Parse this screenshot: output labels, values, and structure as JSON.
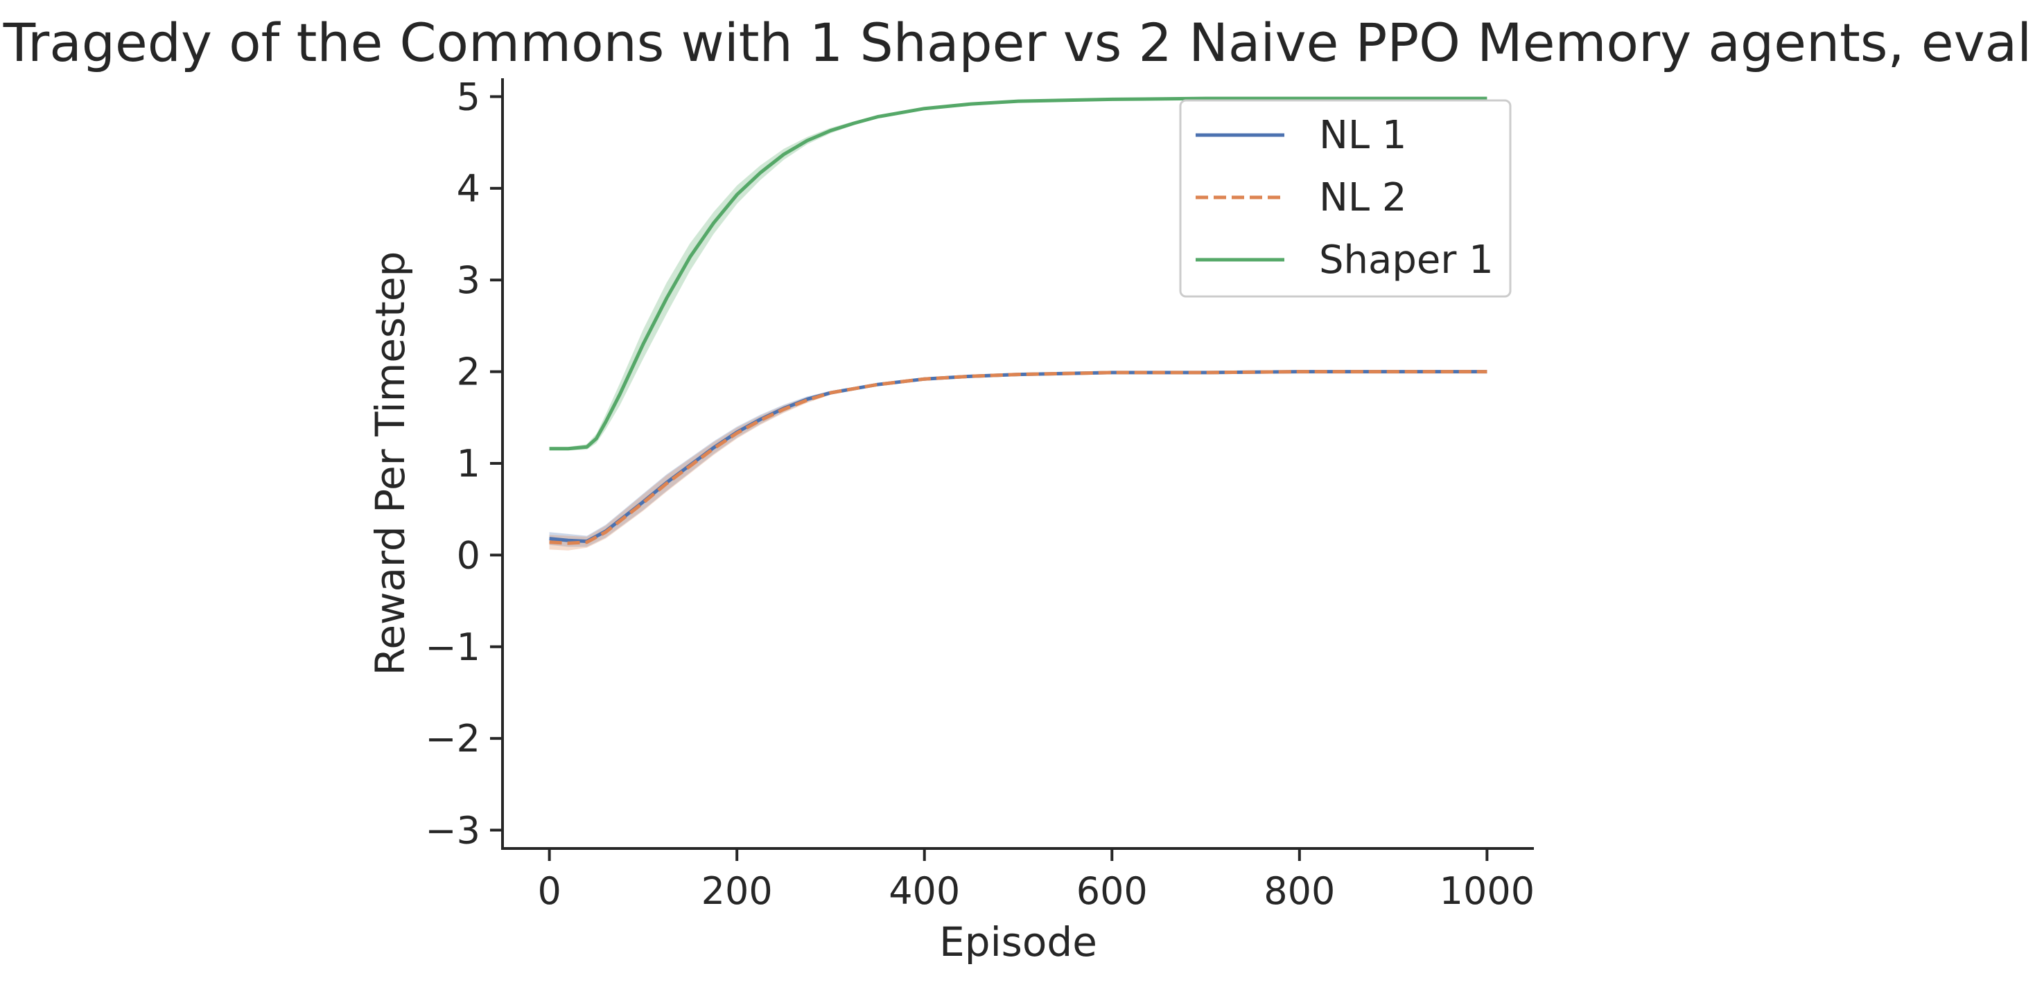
{
  "chart_data": {
    "type": "line",
    "title": "Tragedy of the Commons with 1 Shaper vs 2 Naive PPO Memory agents, eval",
    "xlabel": "Episode",
    "ylabel": "Reward Per Timestep",
    "xlim": [
      -50,
      1050
    ],
    "ylim": [
      -3.2,
      5.2
    ],
    "x_ticks": [
      0,
      200,
      400,
      600,
      800,
      1000
    ],
    "x_tick_labels": [
      "0",
      "200",
      "400",
      "600",
      "800",
      "1000"
    ],
    "y_ticks": [
      -3,
      -2,
      -1,
      0,
      1,
      2,
      3,
      4,
      5
    ],
    "y_tick_labels": [
      "−3",
      "−2",
      "−1",
      "0",
      "1",
      "2",
      "3",
      "4",
      "5"
    ],
    "grid": false,
    "legend_position": "top-right",
    "series": [
      {
        "name": "NL 1",
        "color": "#4c72b0",
        "linestyle": "solid",
        "x": [
          0,
          20,
          40,
          60,
          80,
          100,
          125,
          150,
          175,
          200,
          225,
          250,
          275,
          300,
          350,
          400,
          450,
          500,
          550,
          600,
          700,
          800,
          900,
          1000
        ],
        "y": [
          0.18,
          0.16,
          0.15,
          0.26,
          0.42,
          0.58,
          0.79,
          0.98,
          1.17,
          1.34,
          1.48,
          1.6,
          1.7,
          1.77,
          1.86,
          1.92,
          1.95,
          1.97,
          1.98,
          1.99,
          1.99,
          2.0,
          2.0,
          2.0
        ],
        "band": [
          0.07,
          0.07,
          0.06,
          0.07,
          0.08,
          0.09,
          0.09,
          0.08,
          0.07,
          0.06,
          0.05,
          0.04,
          0.03,
          0.02,
          0.015,
          0.01,
          0.01,
          0.01,
          0.01,
          0.01,
          0.01,
          0.01,
          0.01,
          0.01
        ]
      },
      {
        "name": "NL 2",
        "color": "#dd8452",
        "linestyle": "dashed",
        "x": [
          0,
          20,
          40,
          60,
          80,
          100,
          125,
          150,
          175,
          200,
          225,
          250,
          275,
          300,
          350,
          400,
          450,
          500,
          550,
          600,
          700,
          800,
          900,
          1000
        ],
        "y": [
          0.14,
          0.13,
          0.14,
          0.25,
          0.41,
          0.57,
          0.78,
          0.97,
          1.16,
          1.33,
          1.47,
          1.59,
          1.69,
          1.77,
          1.86,
          1.92,
          1.95,
          1.97,
          1.98,
          1.99,
          1.99,
          2.0,
          2.0,
          2.0
        ],
        "band": [
          0.08,
          0.08,
          0.06,
          0.07,
          0.08,
          0.09,
          0.09,
          0.08,
          0.07,
          0.06,
          0.05,
          0.04,
          0.03,
          0.02,
          0.015,
          0.01,
          0.01,
          0.01,
          0.01,
          0.01,
          0.01,
          0.01,
          0.01,
          0.01
        ]
      },
      {
        "name": "Shaper 1",
        "color": "#55a868",
        "linestyle": "solid",
        "x": [
          0,
          20,
          40,
          50,
          60,
          75,
          100,
          125,
          150,
          175,
          200,
          225,
          250,
          275,
          300,
          325,
          350,
          400,
          450,
          500,
          550,
          600,
          700,
          800,
          900,
          1000
        ],
        "y": [
          1.16,
          1.16,
          1.18,
          1.27,
          1.45,
          1.75,
          2.3,
          2.8,
          3.25,
          3.62,
          3.93,
          4.17,
          4.37,
          4.52,
          4.63,
          4.71,
          4.78,
          4.87,
          4.92,
          4.95,
          4.96,
          4.97,
          4.98,
          4.98,
          4.98,
          4.98
        ],
        "band": [
          0.02,
          0.02,
          0.03,
          0.05,
          0.08,
          0.12,
          0.16,
          0.17,
          0.15,
          0.12,
          0.1,
          0.08,
          0.06,
          0.04,
          0.03,
          0.02,
          0.02,
          0.015,
          0.01,
          0.01,
          0.01,
          0.01,
          0.01,
          0.01,
          0.01,
          0.01
        ]
      }
    ]
  }
}
